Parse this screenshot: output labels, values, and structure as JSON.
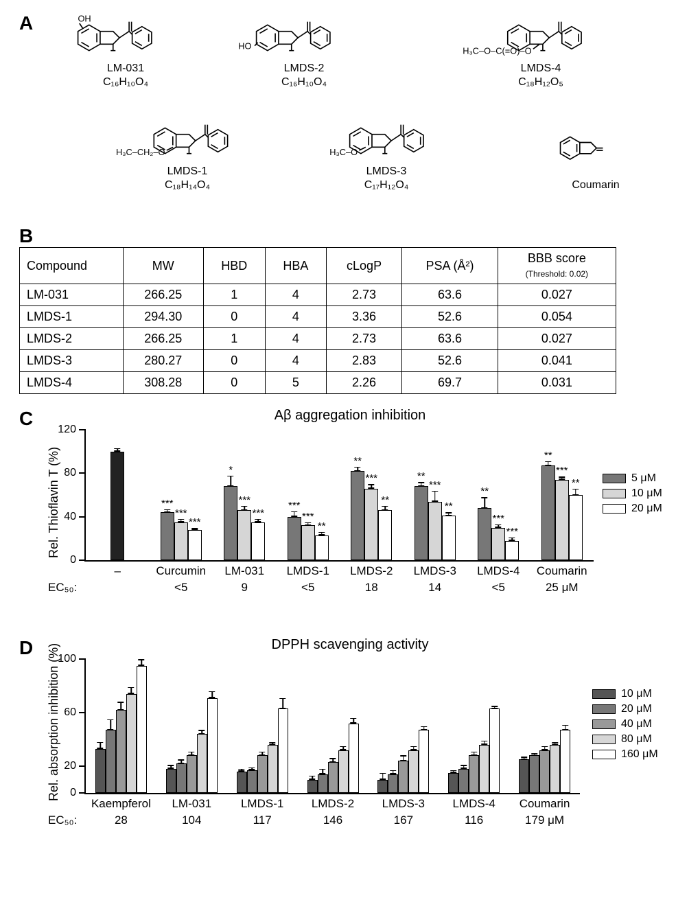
{
  "colors": {
    "black": "#000000",
    "dk": "#555555",
    "md": "#777777",
    "lt": "#aaaaaa",
    "vlt": "#d6d6d6",
    "white": "#ffffff",
    "solid": "#222222"
  },
  "panelA": {
    "label": "A",
    "structures": [
      {
        "name": "LM-031",
        "formula": "C₁₆H₁₀O₄"
      },
      {
        "name": "LMDS-2",
        "formula": "C₁₆H₁₀O₄"
      },
      {
        "name": "LMDS-4",
        "formula": "C₁₈H₁₂O₅"
      },
      {
        "name": "LMDS-1",
        "formula": "C₁₈H₁₄O₄"
      },
      {
        "name": "LMDS-3",
        "formula": "C₁₇H₁₂O₄"
      },
      {
        "name": "Coumarin",
        "formula": ""
      }
    ]
  },
  "panelB": {
    "label": "B",
    "columns": [
      "Compound",
      "MW",
      "HBD",
      "HBA",
      "cLogP",
      "PSA (Å²)",
      "BBB score"
    ],
    "bbb_sub": "(Threshold: 0.02)",
    "rows": [
      [
        "LM-031",
        "266.25",
        "1",
        "4",
        "2.73",
        "63.6",
        "0.027"
      ],
      [
        "LMDS-1",
        "294.30",
        "0",
        "4",
        "3.36",
        "52.6",
        "0.054"
      ],
      [
        "LMDS-2",
        "266.25",
        "1",
        "4",
        "2.73",
        "63.6",
        "0.027"
      ],
      [
        "LMDS-3",
        "280.27",
        "0",
        "4",
        "2.83",
        "52.6",
        "0.041"
      ],
      [
        "LMDS-4",
        "308.28",
        "0",
        "5",
        "2.26",
        "69.7",
        "0.031"
      ]
    ]
  },
  "panelC": {
    "label": "C",
    "title": "Aβ aggregation inhibition",
    "ylabel": "Rel. Thioflavin T (%)",
    "ylim": [
      0,
      120
    ],
    "yticks": [
      0,
      40,
      80,
      120
    ],
    "doses": [
      "5 μM",
      "10 μM",
      "20 μM"
    ],
    "dose_colors": [
      "#777777",
      "#d6d6d6",
      "#ffffff"
    ],
    "ec50_label": "EC₅₀:",
    "ec50_unit": "μM",
    "control": {
      "label": "–",
      "value": 100,
      "err": 3,
      "color": "#222222"
    },
    "groups": [
      {
        "label": "Curcumin",
        "ec50": "<5",
        "bars": [
          {
            "v": 44,
            "e": 3,
            "s": "***"
          },
          {
            "v": 35,
            "e": 3,
            "s": "***"
          },
          {
            "v": 28,
            "e": 2,
            "s": "***"
          }
        ]
      },
      {
        "label": "LM-031",
        "ec50": "9",
        "bars": [
          {
            "v": 68,
            "e": 10,
            "s": "*"
          },
          {
            "v": 46,
            "e": 4,
            "s": "***"
          },
          {
            "v": 35,
            "e": 3,
            "s": "***"
          }
        ]
      },
      {
        "label": "LMDS-1",
        "ec50": "<5",
        "bars": [
          {
            "v": 40,
            "e": 5,
            "s": "***"
          },
          {
            "v": 32,
            "e": 3,
            "s": "***"
          },
          {
            "v": 23,
            "e": 3,
            "s": "**"
          }
        ]
      },
      {
        "label": "LMDS-2",
        "ec50": "18",
        "bars": [
          {
            "v": 82,
            "e": 4,
            "s": "**"
          },
          {
            "v": 66,
            "e": 4,
            "s": "***"
          },
          {
            "v": 46,
            "e": 4,
            "s": "**"
          }
        ]
      },
      {
        "label": "LMDS-3",
        "ec50": "14",
        "bars": [
          {
            "v": 68,
            "e": 4,
            "s": "**"
          },
          {
            "v": 54,
            "e": 10,
            "s": "***"
          },
          {
            "v": 41,
            "e": 3,
            "s": "**"
          }
        ]
      },
      {
        "label": "LMDS-4",
        "ec50": "<5",
        "bars": [
          {
            "v": 48,
            "e": 10,
            "s": "**"
          },
          {
            "v": 30,
            "e": 3,
            "s": "***"
          },
          {
            "v": 18,
            "e": 3,
            "s": "***"
          }
        ]
      },
      {
        "label": "Coumarin",
        "ec50": "25",
        "bars": [
          {
            "v": 87,
            "e": 4,
            "s": "**"
          },
          {
            "v": 74,
            "e": 3,
            "s": "***"
          },
          {
            "v": 60,
            "e": 6,
            "s": "**"
          }
        ]
      }
    ]
  },
  "panelD": {
    "label": "D",
    "title": "DPPH scavenging activity",
    "ylabel": "Rel. absorption inhibition (%)",
    "ylim": [
      0,
      100
    ],
    "yticks": [
      0,
      20,
      60,
      100
    ],
    "doses": [
      "10 μM",
      "20 μM",
      "40 μM",
      "80 μM",
      "160 μM"
    ],
    "dose_colors": [
      "#555555",
      "#777777",
      "#999999",
      "#d6d6d6",
      "#ffffff"
    ],
    "ec50_label": "EC₅₀:",
    "ec50_unit": "μM",
    "groups": [
      {
        "label": "Kaempferol",
        "ec50": "28",
        "bars": [
          {
            "v": 33,
            "e": 5
          },
          {
            "v": 47,
            "e": 8
          },
          {
            "v": 62,
            "e": 6
          },
          {
            "v": 74,
            "e": 5
          },
          {
            "v": 95,
            "e": 5
          }
        ]
      },
      {
        "label": "LM-031",
        "ec50": "104",
        "bars": [
          {
            "v": 18,
            "e": 3
          },
          {
            "v": 22,
            "e": 3
          },
          {
            "v": 28,
            "e": 3
          },
          {
            "v": 44,
            "e": 3
          },
          {
            "v": 71,
            "e": 5
          }
        ]
      },
      {
        "label": "LMDS-1",
        "ec50": "117",
        "bars": [
          {
            "v": 16,
            "e": 2
          },
          {
            "v": 17,
            "e": 2
          },
          {
            "v": 28,
            "e": 3
          },
          {
            "v": 36,
            "e": 2
          },
          {
            "v": 63,
            "e": 8
          }
        ]
      },
      {
        "label": "LMDS-2",
        "ec50": "146",
        "bars": [
          {
            "v": 10,
            "e": 3
          },
          {
            "v": 14,
            "e": 4
          },
          {
            "v": 23,
            "e": 3
          },
          {
            "v": 32,
            "e": 3
          },
          {
            "v": 52,
            "e": 4
          }
        ]
      },
      {
        "label": "LMDS-3",
        "ec50": "167",
        "bars": [
          {
            "v": 10,
            "e": 5
          },
          {
            "v": 14,
            "e": 3
          },
          {
            "v": 24,
            "e": 4
          },
          {
            "v": 32,
            "e": 3
          },
          {
            "v": 47,
            "e": 3
          }
        ]
      },
      {
        "label": "LMDS-4",
        "ec50": "116",
        "bars": [
          {
            "v": 15,
            "e": 2
          },
          {
            "v": 18,
            "e": 3
          },
          {
            "v": 28,
            "e": 3
          },
          {
            "v": 36,
            "e": 3
          },
          {
            "v": 63,
            "e": 2
          }
        ]
      },
      {
        "label": "Coumarin",
        "ec50": "179",
        "bars": [
          {
            "v": 25,
            "e": 2
          },
          {
            "v": 28,
            "e": 2
          },
          {
            "v": 32,
            "e": 3
          },
          {
            "v": 36,
            "e": 2
          },
          {
            "v": 47,
            "e": 4
          }
        ]
      }
    ]
  }
}
